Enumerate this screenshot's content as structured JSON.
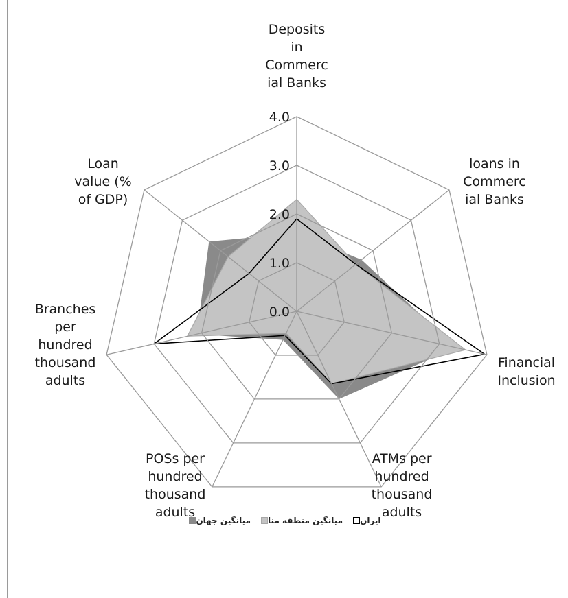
{
  "chart_data": {
    "type": "radar",
    "title": "",
    "axes": [
      "Deposits\nin\nCommerc\nial Banks",
      "loans in\nCommerc\nial Banks",
      "Financial\nInclusion",
      "ATMs per\nhundred\nthousand\nadults",
      "POSs per\nhundred\nthousand\nadults",
      "Branches\nper\nhundred\nthousand\nadults",
      "Loan\nvalue (%\nof GDP)"
    ],
    "tick_labels": [
      "0.0",
      "1.0",
      "2.0",
      "3.0",
      "4.0"
    ],
    "rlim": [
      0,
      4
    ],
    "grid": true,
    "legend_position": "bottom",
    "series": [
      {
        "name": "میانگین جهان",
        "values": [
          1.6,
          1.7,
          3.35,
          2.0,
          0.65,
          2.1,
          2.3
        ],
        "fill": "#8a8a8a",
        "stroke": "none"
      },
      {
        "name": "میانگین منطقه منا",
        "values": [
          2.3,
          1.55,
          3.55,
          1.65,
          0.5,
          2.3,
          1.8
        ],
        "fill": "#c4c4c4",
        "stroke": "#a8a8a8"
      },
      {
        "name": "ایران",
        "values": [
          1.9,
          1.55,
          3.95,
          1.65,
          0.55,
          3.0,
          1.25
        ],
        "fill": "none",
        "stroke": "#000000"
      }
    ]
  }
}
